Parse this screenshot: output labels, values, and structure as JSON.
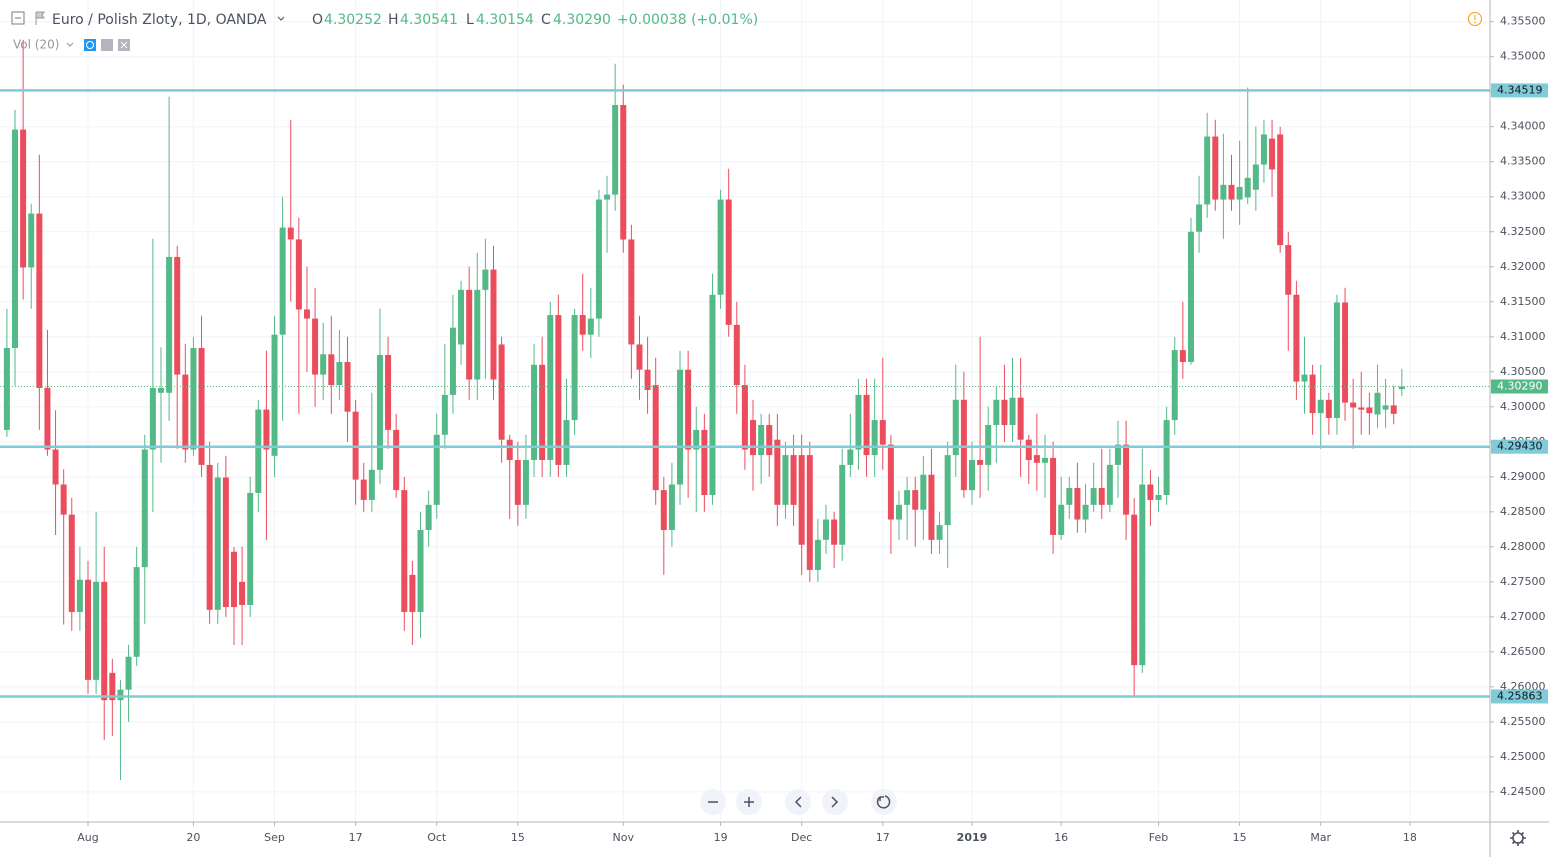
{
  "chart_data": {
    "type": "candlestick",
    "title": "Euro / Polish Zloty, 1D, OANDA",
    "legend_labels": {
      "open": "O",
      "high": "H",
      "low": "L",
      "close": "C"
    },
    "change": "+0.00038 (+0.01%)",
    "volume_label": "Vol (20)",
    "last_price_label": "4.30290",
    "up_color": "#53b987",
    "down_color": "#eb4d5c",
    "level_color": "#7fcbd8",
    "grid": true,
    "categories": [
      null,
      null,
      null,
      null,
      null,
      null,
      null,
      null,
      null,
      null,
      "Aug",
      null,
      null,
      null,
      null,
      null,
      null,
      null,
      null,
      null,
      null,
      null,
      null,
      "20",
      null,
      null,
      null,
      null,
      null,
      null,
      null,
      null,
      null,
      "Sep",
      null,
      null,
      null,
      null,
      null,
      null,
      null,
      null,
      null,
      "17",
      null,
      null,
      null,
      null,
      null,
      null,
      null,
      null,
      null,
      "Oct",
      null,
      null,
      null,
      null,
      null,
      null,
      null,
      null,
      null,
      "15",
      null,
      null,
      null,
      null,
      null,
      null,
      null,
      null,
      null,
      null,
      null,
      null,
      "Nov",
      null,
      null,
      null,
      null,
      null,
      null,
      null,
      null,
      null,
      null,
      null,
      "19",
      null,
      null,
      null,
      null,
      null,
      null,
      null,
      null,
      null,
      "Dec",
      null,
      null,
      null,
      null,
      null,
      null,
      null,
      null,
      null,
      "17",
      null,
      null,
      null,
      null,
      null,
      null,
      null,
      null,
      null,
      null,
      "2019",
      null,
      null,
      null,
      null,
      null,
      null,
      null,
      null,
      null,
      null,
      "16",
      null,
      null,
      null,
      null,
      null,
      null,
      null,
      null,
      null,
      null,
      null,
      "Feb",
      null,
      null,
      null,
      null,
      null,
      null,
      null,
      null,
      null,
      "15",
      null,
      null,
      null,
      null,
      null,
      null,
      null,
      null,
      null,
      "Mar",
      null,
      null,
      null,
      null,
      null,
      null,
      null,
      null,
      null,
      null,
      "18"
    ],
    "open": [
      4.2967,
      4.3084,
      4.3396,
      4.3199,
      4.3276,
      4.3027,
      4.2939,
      4.2889,
      4.2846,
      4.2707,
      4.2753,
      4.261,
      4.275,
      4.262,
      4.2581,
      4.2596,
      4.2643,
      4.2771,
      4.2939,
      4.302,
      4.302,
      4.3214,
      4.3046,
      4.2939,
      4.3084,
      4.2917,
      4.271,
      4.2899,
      4.2793,
      4.275,
      4.2717,
      4.2877,
      4.2996,
      4.293,
      4.3103,
      4.3256,
      4.3239,
      4.3139,
      4.3126,
      4.3046,
      4.3075,
      4.3031,
      4.3064,
      4.2993,
      4.2896,
      4.2867,
      4.291,
      4.3074,
      4.2967,
      4.2881,
      4.276,
      4.2707,
      4.2824,
      4.286,
      4.296,
      4.3017,
      4.3089,
      4.3167,
      4.3039,
      4.3167,
      4.3196,
      4.3089,
      4.2953,
      4.2924,
      4.286,
      4.2924,
      4.306,
      4.2924,
      4.3131,
      4.2917,
      4.2981,
      4.3131,
      4.3103,
      4.3126,
      4.3296,
      4.3303,
      4.3431,
      4.3239,
      4.3089,
      4.3053,
      4.3031,
      4.2881,
      4.2824,
      4.2889,
      4.3053,
      4.2939,
      4.2967,
      4.2874,
      4.316,
      4.3296,
      4.3117,
      4.3031,
      4.2981,
      4.2931,
      4.2974,
      4.2953,
      4.286,
      4.2931,
      4.2931,
      4.2931,
      4.2767,
      4.281,
      4.2839,
      4.2803,
      4.2917,
      4.2939,
      4.3017,
      4.2931,
      4.2981,
      4.2946,
      4.2839,
      4.286,
      4.2881,
      4.2853,
      4.2903,
      4.281,
      4.2831,
      4.2931,
      4.301,
      4.2881,
      4.2924,
      4.2917,
      4.2974,
      4.301,
      4.2974,
      4.3013,
      4.2953,
      4.2931,
      4.292,
      4.2927,
      4.2817,
      4.286,
      4.2884,
      4.2839,
      4.286,
      4.2884,
      4.286,
      4.2917,
      4.2946,
      4.2846,
      4.2631,
      4.2889,
      4.2867,
      4.2874,
      4.2981,
      4.3081,
      4.3064,
      4.325,
      4.3289,
      4.3386,
      4.3296,
      4.3317,
      4.3296,
      4.3299,
      4.331,
      4.3346,
      4.3383,
      4.3389,
      4.3231,
      4.316,
      4.3036,
      4.3046,
      4.2991,
      4.301,
      4.2984,
      4.3149,
      4.3006,
      4.2999,
      4.2999,
      4.2989,
      4.2996,
      4.3002,
      4.30252,
      null
    ],
    "high": [
      4.314,
      4.3424,
      4.3524,
      4.329,
      4.336,
      4.311,
      4.2995,
      4.2911,
      4.287,
      4.28,
      4.278,
      4.285,
      4.28,
      4.264,
      4.261,
      4.266,
      4.28,
      4.296,
      4.324,
      4.3085,
      4.3443,
      4.323,
      4.309,
      4.31,
      4.313,
      4.295,
      4.292,
      4.293,
      4.28,
      4.28,
      4.29,
      4.301,
      4.308,
      4.313,
      4.33,
      4.341,
      4.327,
      4.32,
      4.317,
      4.312,
      4.313,
      4.311,
      4.31,
      4.301,
      4.292,
      4.302,
      4.314,
      4.31,
      4.299,
      4.29,
      4.278,
      4.285,
      4.288,
      4.299,
      4.309,
      4.316,
      4.318,
      4.32,
      4.322,
      4.324,
      4.323,
      4.31,
      4.296,
      4.295,
      4.296,
      4.309,
      4.31,
      4.315,
      4.316,
      4.304,
      4.314,
      4.319,
      4.317,
      4.331,
      4.333,
      4.349,
      4.346,
      4.326,
      4.313,
      4.31,
      4.307,
      4.29,
      4.292,
      4.308,
      4.308,
      4.3,
      4.299,
      4.319,
      4.331,
      4.334,
      4.315,
      4.306,
      4.301,
      4.299,
      4.299,
      4.299,
      4.295,
      4.296,
      4.296,
      4.295,
      4.284,
      4.286,
      4.285,
      4.294,
      4.299,
      4.304,
      4.304,
      4.304,
      4.307,
      4.296,
      4.288,
      4.29,
      4.29,
      4.293,
      4.294,
      4.285,
      4.295,
      4.306,
      4.305,
      4.295,
      4.31,
      4.3,
      4.303,
      4.306,
      4.307,
      4.307,
      4.296,
      4.299,
      4.296,
      4.295,
      4.29,
      4.29,
      4.292,
      4.289,
      4.292,
      4.294,
      4.294,
      4.298,
      4.298,
      4.287,
      4.294,
      4.291,
      4.29,
      4.3,
      4.31,
      4.315,
      4.327,
      4.333,
      4.342,
      4.341,
      4.339,
      4.336,
      4.338,
      4.3456,
      4.34,
      4.341,
      4.341,
      4.34,
      4.325,
      4.318,
      4.31,
      4.306,
      4.306,
      4.302,
      4.316,
      4.317,
      4.304,
      4.305,
      4.302,
      4.306,
      4.304,
      4.303,
      4.30541,
      null
    ],
    "low": [
      4.2957,
      4.303,
      4.3153,
      4.314,
      4.2967,
      4.293,
      4.2817,
      4.2689,
      4.268,
      4.268,
      4.259,
      4.259,
      4.2524,
      4.253,
      4.2467,
      4.255,
      4.263,
      4.269,
      4.285,
      4.292,
      4.298,
      4.294,
      4.292,
      4.293,
      4.29,
      4.269,
      4.269,
      4.27,
      4.266,
      4.266,
      4.27,
      4.285,
      4.281,
      4.29,
      4.298,
      4.315,
      4.299,
      4.305,
      4.3,
      4.301,
      4.299,
      4.301,
      4.295,
      4.286,
      4.285,
      4.285,
      4.289,
      4.294,
      4.287,
      4.268,
      4.266,
      4.267,
      4.28,
      4.284,
      4.294,
      4.299,
      4.306,
      4.301,
      4.301,
      4.304,
      4.301,
      4.292,
      4.284,
      4.283,
      4.284,
      4.29,
      4.29,
      4.29,
      4.29,
      4.29,
      4.296,
      4.308,
      4.307,
      4.31,
      4.322,
      4.328,
      4.322,
      4.304,
      4.301,
      4.299,
      4.286,
      4.276,
      4.28,
      4.286,
      4.287,
      4.285,
      4.285,
      4.286,
      4.314,
      4.31,
      4.299,
      4.291,
      4.288,
      4.289,
      4.29,
      4.283,
      4.284,
      4.283,
      4.276,
      4.275,
      4.275,
      4.279,
      4.277,
      4.278,
      4.29,
      4.291,
      4.29,
      4.29,
      4.291,
      4.279,
      4.281,
      4.281,
      4.28,
      4.281,
      4.279,
      4.279,
      4.277,
      4.29,
      4.287,
      4.286,
      4.287,
      4.288,
      4.292,
      4.295,
      4.295,
      4.29,
      4.289,
      4.288,
      4.287,
      4.279,
      4.281,
      4.284,
      4.282,
      4.282,
      4.285,
      4.284,
      4.285,
      4.287,
      4.281,
      4.2586,
      4.262,
      4.283,
      4.285,
      4.286,
      4.296,
      4.304,
      4.306,
      4.322,
      4.327,
      4.328,
      4.324,
      4.328,
      4.326,
      4.329,
      4.328,
      4.332,
      4.33,
      4.322,
      4.308,
      4.301,
      4.299,
      4.296,
      4.294,
      4.296,
      4.296,
      4.298,
      4.294,
      4.296,
      4.296,
      4.297,
      4.297,
      4.2975,
      4.30154,
      null
    ],
    "close": [
      4.3084,
      4.3396,
      4.3199,
      4.3276,
      4.3027,
      4.2939,
      4.2889,
      4.2846,
      4.2707,
      4.2753,
      4.261,
      4.275,
      4.2581,
      4.2581,
      4.2596,
      4.2643,
      4.2771,
      4.2939,
      4.3027,
      4.3027,
      4.3214,
      4.3046,
      4.2939,
      4.3084,
      4.2917,
      4.271,
      4.2899,
      4.2714,
      4.2714,
      4.2717,
      4.2877,
      4.2996,
      4.2939,
      4.3103,
      4.3256,
      4.3239,
      4.3139,
      4.3126,
      4.3046,
      4.3075,
      4.3031,
      4.3064,
      4.2993,
      4.2896,
      4.2867,
      4.291,
      4.3074,
      4.2967,
      4.2881,
      4.2707,
      4.2707,
      4.2824,
      4.286,
      4.296,
      4.3017,
      4.3113,
      4.3167,
      4.3039,
      4.3167,
      4.3196,
      4.3039,
      4.2953,
      4.2924,
      4.286,
      4.2924,
      4.306,
      4.2924,
      4.3131,
      4.2917,
      4.2981,
      4.3131,
      4.3103,
      4.3126,
      4.3296,
      4.3303,
      4.3431,
      4.3239,
      4.3089,
      4.3053,
      4.3024,
      4.2881,
      4.2824,
      4.2889,
      4.3053,
      4.2939,
      4.2967,
      4.2874,
      4.316,
      4.3296,
      4.3117,
      4.3031,
      4.2939,
      4.2931,
      4.2974,
      4.2931,
      4.286,
      4.2931,
      4.286,
      4.2803,
      4.2767,
      4.281,
      4.2839,
      4.2803,
      4.2917,
      4.2939,
      4.3017,
      4.2931,
      4.2981,
      4.2946,
      4.2839,
      4.286,
      4.2881,
      4.2853,
      4.2903,
      4.281,
      4.2831,
      4.2931,
      4.301,
      4.2881,
      4.2924,
      4.2917,
      4.2974,
      4.301,
      4.2974,
      4.3013,
      4.2953,
      4.2924,
      4.292,
      4.2927,
      4.2817,
      4.286,
      4.2884,
      4.2839,
      4.286,
      4.2884,
      4.286,
      4.2917,
      4.2946,
      4.2846,
      4.2631,
      4.2889,
      4.2867,
      4.2874,
      4.2981,
      4.3081,
      4.3064,
      4.325,
      4.3289,
      4.3386,
      4.3296,
      4.3317,
      4.3296,
      4.3314,
      4.3327,
      4.3346,
      4.3389,
      4.3339,
      4.3231,
      4.316,
      4.3036,
      4.3046,
      4.2991,
      4.301,
      4.2984,
      4.3149,
      4.3006,
      4.2999,
      4.2996,
      4.2991,
      4.302,
      4.3002,
      4.299,
      4.3029,
      null
    ],
    "levels": [
      4.34519,
      {
        "value": 4.2943,
        "label": "4.29430"
      },
      4.25863
    ],
    "ylim": [
      4.2407,
      4.3581
    ],
    "yticks": [
      {
        "value": 4.355,
        "label": "4.35500"
      },
      {
        "value": 4.35,
        "label": "4.35000"
      },
      {
        "value": 4.345,
        "label": "4.34500"
      },
      {
        "value": 4.34,
        "label": "4.34000"
      },
      {
        "value": 4.335,
        "label": "4.33500"
      },
      {
        "value": 4.33,
        "label": "4.33000"
      },
      {
        "value": 4.325,
        "label": "4.32500"
      },
      {
        "value": 4.32,
        "label": "4.32000"
      },
      {
        "value": 4.315,
        "label": "4.31500"
      },
      {
        "value": 4.31,
        "label": "4.31000"
      },
      {
        "value": 4.305,
        "label": "4.30500"
      },
      {
        "value": 4.3,
        "label": "4.30000"
      },
      {
        "value": 4.295,
        "label": "4.29500"
      },
      {
        "value": 4.29,
        "label": "4.29000"
      },
      {
        "value": 4.285,
        "label": "4.28500"
      },
      {
        "value": 4.28,
        "label": "4.28000"
      },
      {
        "value": 4.275,
        "label": "4.27500"
      },
      {
        "value": 4.27,
        "label": "4.27000"
      },
      {
        "value": 4.265,
        "label": "4.26500"
      },
      {
        "value": 4.26,
        "label": "4.26000"
      },
      {
        "value": 4.255,
        "label": "4.25500"
      },
      {
        "value": 4.25,
        "label": "4.25000"
      },
      {
        "value": 4.245,
        "label": "4.24500"
      }
    ]
  }
}
